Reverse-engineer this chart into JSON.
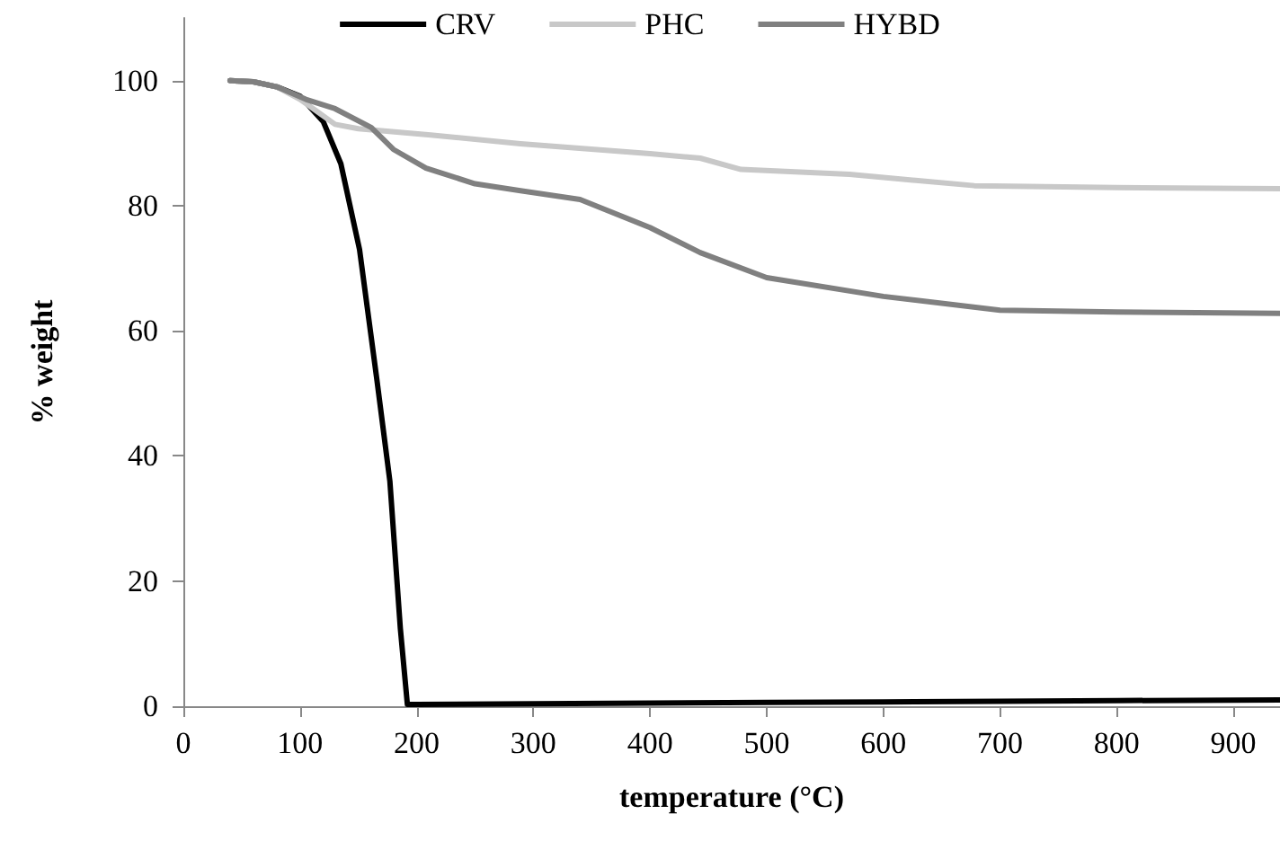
{
  "chart_data": {
    "type": "line",
    "xlabel": "temperature (°C)",
    "ylabel": "% weight",
    "xlim": [
      0,
      940
    ],
    "xticks": [
      0,
      100,
      200,
      300,
      400,
      500,
      600,
      700,
      800,
      900
    ],
    "ylim": [
      0,
      110
    ],
    "yticks": [
      0,
      20,
      40,
      60,
      80,
      100
    ],
    "grid": false,
    "legend": "top",
    "marker": "none",
    "line_style": "solid",
    "series": [
      {
        "name": "CRV",
        "color": "#000000",
        "x": [
          40,
          60,
          80,
          100,
          120,
          135,
          151,
          166,
          177,
          186,
          192,
          200,
          300,
          400,
          500,
          600,
          700,
          800,
          940
        ],
        "values": [
          100,
          99.8,
          99,
          97.5,
          93.4,
          86.7,
          73,
          52,
          36,
          12.4,
          0.3,
          0.3,
          0.4,
          0.5,
          0.6,
          0.7,
          0.8,
          0.9,
          1
        ]
      },
      {
        "name": "PHC",
        "color": "#c8c8c8",
        "x": [
          40,
          60,
          80,
          100,
          130,
          150,
          212,
          289,
          400,
          443,
          478,
          571,
          678,
          800,
          940
        ],
        "values": [
          100,
          99.8,
          99,
          97,
          93,
          92.3,
          91.3,
          89.9,
          88.3,
          87.6,
          85.8,
          85,
          83.2,
          82.9,
          82.7
        ]
      },
      {
        "name": "HYBD",
        "color": "#808080",
        "x": [
          40,
          60,
          80,
          105,
          130,
          161,
          180,
          208,
          250,
          289,
          340,
          400,
          443,
          500,
          600,
          700,
          800,
          940
        ],
        "values": [
          100,
          99.8,
          99,
          97,
          95.5,
          92.5,
          89,
          86,
          83.5,
          82.4,
          81,
          76.5,
          72.5,
          68.5,
          65.5,
          63.3,
          63,
          62.8
        ]
      }
    ]
  }
}
